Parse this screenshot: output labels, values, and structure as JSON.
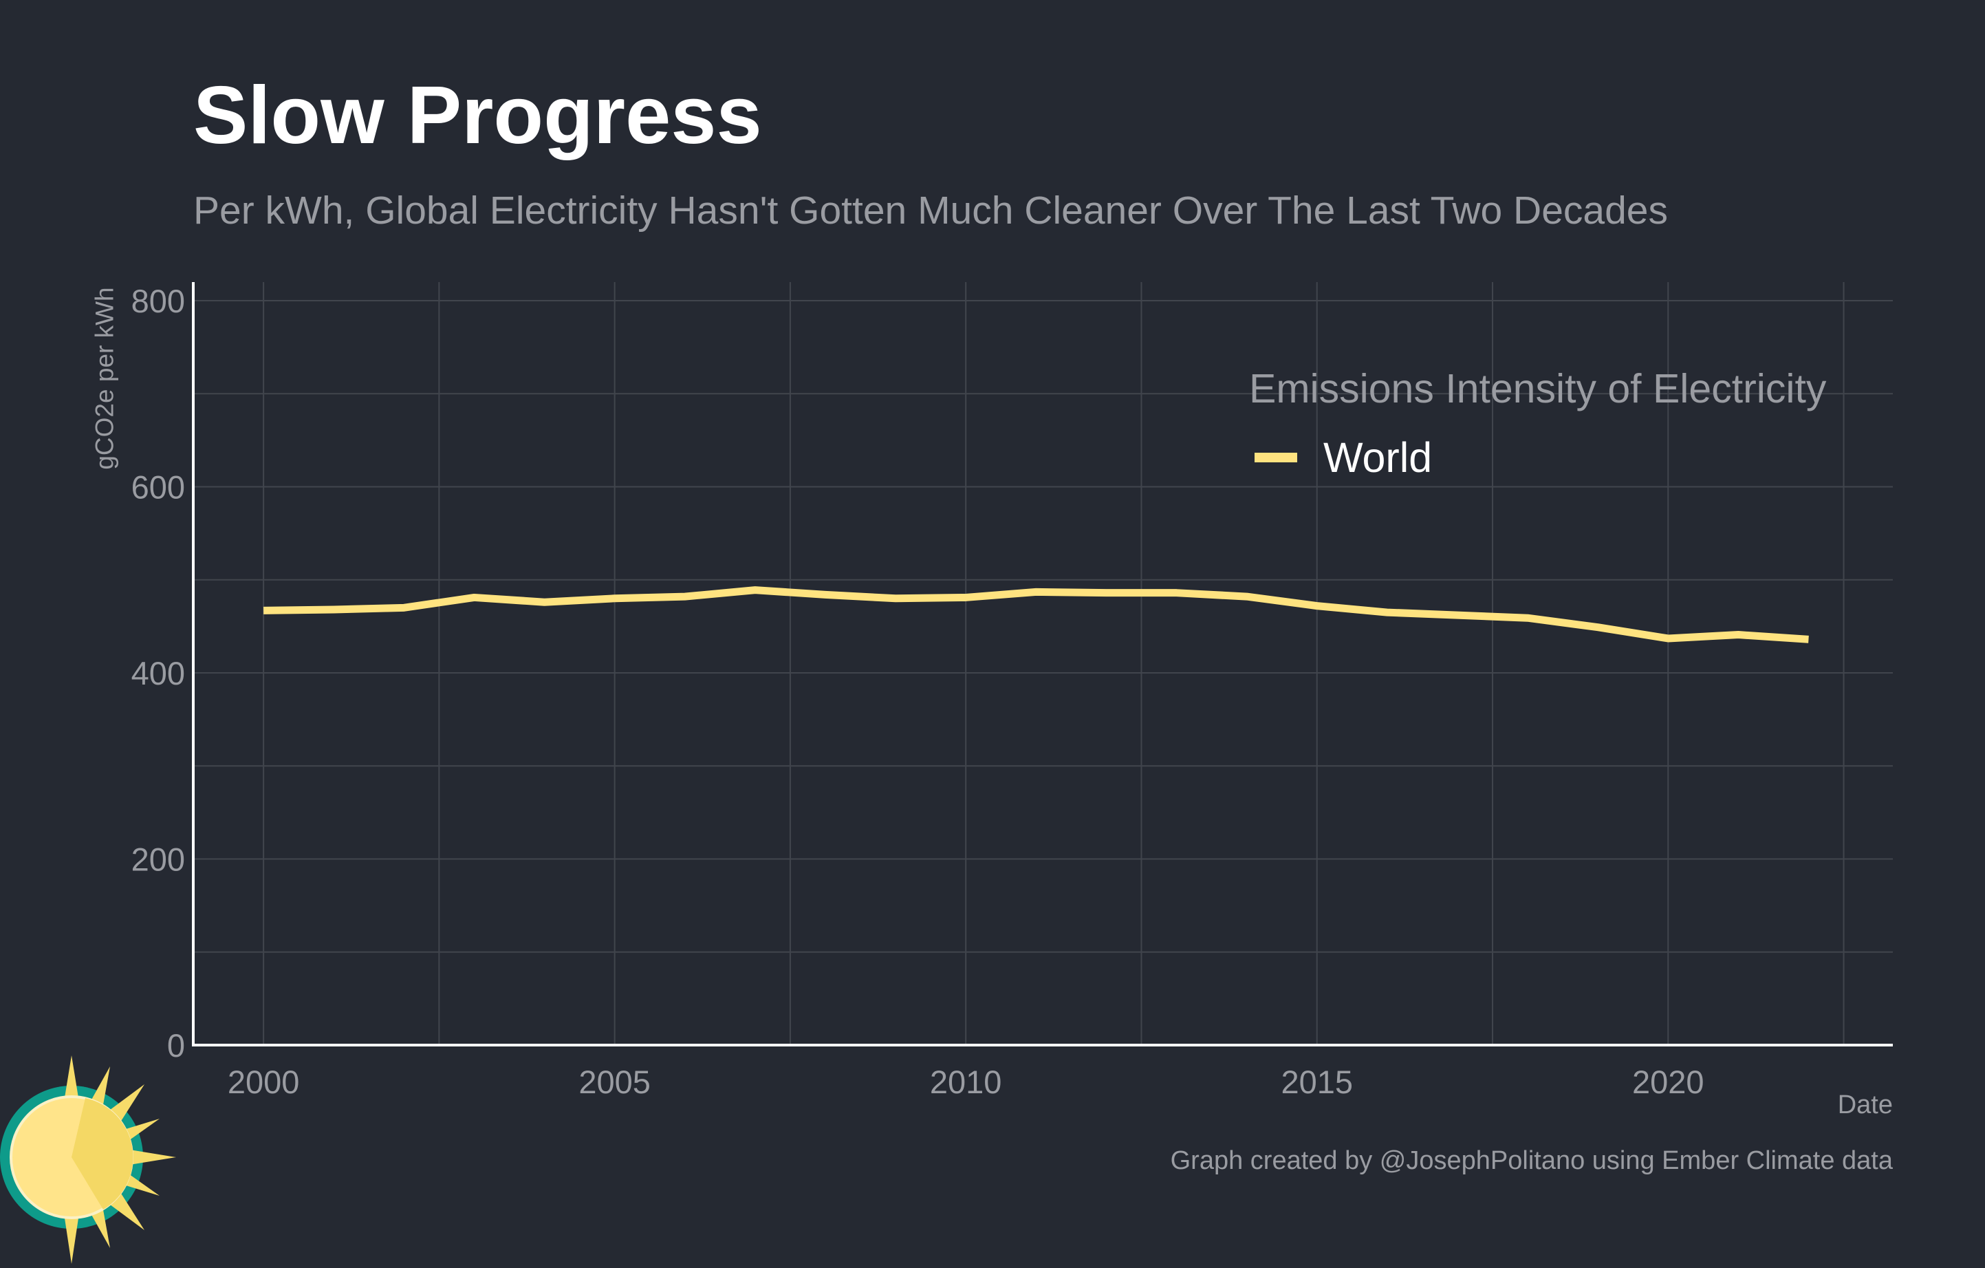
{
  "title": "Slow Progress",
  "subtitle": "Per kWh, Global Electricity Hasn't Gotten Much Cleaner Over The Last Two Decades",
  "caption": "Graph created by @JosephPolitano using Ember Climate data",
  "colors": {
    "background": "#252932",
    "series_world": "#ffe380",
    "grid": "#41454d",
    "axis": "#ffffff",
    "logo_sun": "#f6dc6a",
    "logo_ring": "#0e9b8a"
  },
  "chart_data": {
    "type": "line",
    "title": "Slow Progress",
    "subtitle": "Per kWh, Global Electricity Hasn't Gotten Much Cleaner Over The Last Two Decades",
    "xlabel": "Date",
    "ylabel": "gCO2e per kWh",
    "xlim": [
      1999,
      2023.2
    ],
    "ylim": [
      0,
      800
    ],
    "x_ticks": [
      2000,
      2005,
      2010,
      2015,
      2020
    ],
    "y_ticks": [
      0,
      200,
      400,
      600,
      800
    ],
    "grid": true,
    "legend": {
      "title": "Emissions Intensity of Electricity",
      "placement": "top-right",
      "entries": [
        "World"
      ]
    },
    "x": [
      2000,
      2001,
      2002,
      2003,
      2004,
      2005,
      2006,
      2007,
      2008,
      2009,
      2010,
      2011,
      2012,
      2013,
      2014,
      2015,
      2016,
      2017,
      2018,
      2019,
      2020,
      2021,
      2022
    ],
    "series": [
      {
        "name": "World",
        "values": [
          467,
          468,
          470,
          481,
          476,
          480,
          482,
          489,
          484,
          480,
          481,
          487,
          486,
          486,
          482,
          472,
          465,
          462,
          459,
          449,
          437,
          441,
          436
        ]
      }
    ]
  }
}
